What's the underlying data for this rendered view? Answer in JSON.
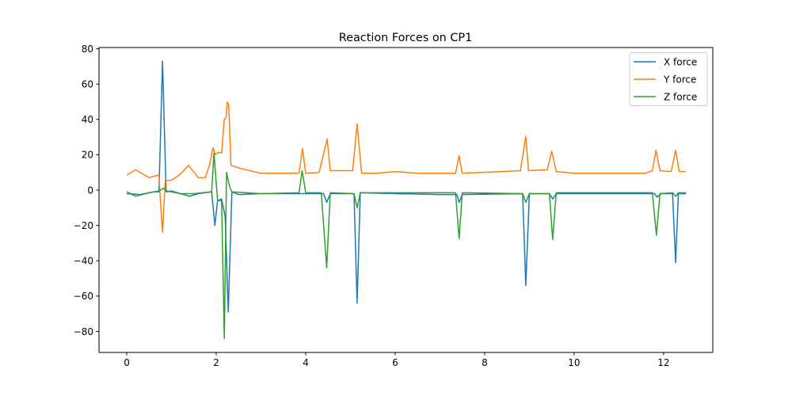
{
  "chart_data": {
    "type": "line",
    "title": "Reaction Forces on CP1",
    "xlabel": "",
    "ylabel": "",
    "xlim": [
      -0.62,
      13.1
    ],
    "ylim": [
      -91.9,
      80.7
    ],
    "xticks": [
      0,
      2,
      4,
      6,
      8,
      10,
      12
    ],
    "yticks": [
      -80,
      -60,
      -40,
      -20,
      0,
      20,
      40,
      60,
      80
    ],
    "xtick_labels": [
      "0",
      "2",
      "4",
      "6",
      "8",
      "10",
      "12"
    ],
    "ytick_labels": [
      "−80",
      "−60",
      "−40",
      "−20",
      "0",
      "20",
      "40",
      "60",
      "80"
    ],
    "grid": false,
    "legend_position": "top-right",
    "series": [
      {
        "name": "X force",
        "color": "#1f77b4",
        "points": [
          [
            0,
            -2
          ],
          [
            0.3,
            -2.5
          ],
          [
            0.6,
            -1
          ],
          [
            0.72,
            -1
          ],
          [
            0.8,
            73
          ],
          [
            0.88,
            -1
          ],
          [
            1.0,
            -0.5
          ],
          [
            1.4,
            -3.5
          ],
          [
            1.6,
            -2
          ],
          [
            1.9,
            -1
          ],
          [
            1.97,
            -20
          ],
          [
            2.03,
            -6
          ],
          [
            2.12,
            -5
          ],
          [
            2.2,
            -15
          ],
          [
            2.27,
            -69
          ],
          [
            2.35,
            -1
          ],
          [
            2.5,
            -2.5
          ],
          [
            3.0,
            -2
          ],
          [
            3.92,
            -2
          ],
          [
            4.4,
            -2
          ],
          [
            4.47,
            -7
          ],
          [
            4.55,
            -2
          ],
          [
            5.08,
            -2
          ],
          [
            5.15,
            -64
          ],
          [
            5.22,
            -1.5
          ],
          [
            6,
            -2
          ],
          [
            7,
            -2.5
          ],
          [
            7.38,
            -2.5
          ],
          [
            7.43,
            -7
          ],
          [
            7.5,
            -2.5
          ],
          [
            8.85,
            -2
          ],
          [
            8.92,
            -54
          ],
          [
            9.0,
            -2
          ],
          [
            9.45,
            -2
          ],
          [
            9.52,
            -5
          ],
          [
            9.6,
            -2
          ],
          [
            11.8,
            -2
          ],
          [
            11.85,
            -4
          ],
          [
            11.95,
            -2
          ],
          [
            12.2,
            -2
          ],
          [
            12.27,
            -41
          ],
          [
            12.33,
            -2
          ],
          [
            12.5,
            -2
          ]
        ]
      },
      {
        "name": "Y force",
        "color": "#ff7f0e",
        "points": [
          [
            0,
            8.5
          ],
          [
            0.2,
            11.5
          ],
          [
            0.5,
            7
          ],
          [
            0.72,
            8.5
          ],
          [
            0.75,
            -5
          ],
          [
            0.8,
            -24
          ],
          [
            0.86,
            5.5
          ],
          [
            1.0,
            5.5
          ],
          [
            1.2,
            9
          ],
          [
            1.38,
            14
          ],
          [
            1.6,
            7
          ],
          [
            1.75,
            7
          ],
          [
            1.85,
            14
          ],
          [
            1.93,
            24
          ],
          [
            1.98,
            20
          ],
          [
            2.05,
            21.5
          ],
          [
            2.12,
            21
          ],
          [
            2.18,
            40
          ],
          [
            2.22,
            41
          ],
          [
            2.25,
            50
          ],
          [
            2.28,
            48
          ],
          [
            2.33,
            14
          ],
          [
            2.5,
            12.5
          ],
          [
            3,
            9.5
          ],
          [
            3.85,
            9.5
          ],
          [
            3.93,
            23.5
          ],
          [
            4.0,
            9.5
          ],
          [
            4.3,
            10
          ],
          [
            4.48,
            29
          ],
          [
            4.55,
            11
          ],
          [
            5.05,
            11
          ],
          [
            5.15,
            37.5
          ],
          [
            5.25,
            9.5
          ],
          [
            5.6,
            9.5
          ],
          [
            6,
            10.5
          ],
          [
            6.5,
            9.5
          ],
          [
            7.35,
            9.5
          ],
          [
            7.43,
            19.5
          ],
          [
            7.5,
            9.5
          ],
          [
            8.8,
            11
          ],
          [
            8.92,
            30.5
          ],
          [
            8.98,
            11
          ],
          [
            9.4,
            11.5
          ],
          [
            9.5,
            22
          ],
          [
            9.6,
            10.5
          ],
          [
            10,
            9.5
          ],
          [
            11.6,
            9.5
          ],
          [
            11.75,
            11
          ],
          [
            11.83,
            22.5
          ],
          [
            11.92,
            11
          ],
          [
            12.17,
            10.5
          ],
          [
            12.27,
            22.5
          ],
          [
            12.35,
            10.5
          ],
          [
            12.5,
            10.5
          ]
        ]
      },
      {
        "name": "Z force",
        "color": "#2ca02c",
        "points": [
          [
            0,
            -1
          ],
          [
            0.2,
            -3.5
          ],
          [
            0.5,
            -1.5
          ],
          [
            0.72,
            -0.5
          ],
          [
            0.82,
            1
          ],
          [
            0.9,
            -0.5
          ],
          [
            1.2,
            -2
          ],
          [
            1.5,
            -2
          ],
          [
            1.9,
            -1
          ],
          [
            1.95,
            21
          ],
          [
            2.03,
            -6
          ],
          [
            2.12,
            -6
          ],
          [
            2.18,
            -84
          ],
          [
            2.23,
            10
          ],
          [
            2.3,
            2
          ],
          [
            2.35,
            -1
          ],
          [
            3,
            -2
          ],
          [
            3.85,
            -1.5
          ],
          [
            3.92,
            11
          ],
          [
            4.0,
            -1.5
          ],
          [
            4.35,
            -1.5
          ],
          [
            4.47,
            -44
          ],
          [
            4.55,
            -1.5
          ],
          [
            5.08,
            -2
          ],
          [
            5.15,
            -10
          ],
          [
            5.22,
            -1.5
          ],
          [
            7.35,
            -1.5
          ],
          [
            7.43,
            -27.5
          ],
          [
            7.5,
            -1.5
          ],
          [
            8.85,
            -2
          ],
          [
            8.92,
            -7
          ],
          [
            9.0,
            -2
          ],
          [
            9.45,
            -2
          ],
          [
            9.52,
            -28
          ],
          [
            9.6,
            -1.5
          ],
          [
            11.75,
            -1.5
          ],
          [
            11.84,
            -25.5
          ],
          [
            11.92,
            -2
          ],
          [
            12.2,
            -1.5
          ],
          [
            12.27,
            -3.5
          ],
          [
            12.33,
            -1.5
          ],
          [
            12.5,
            -1.5
          ]
        ]
      }
    ]
  }
}
